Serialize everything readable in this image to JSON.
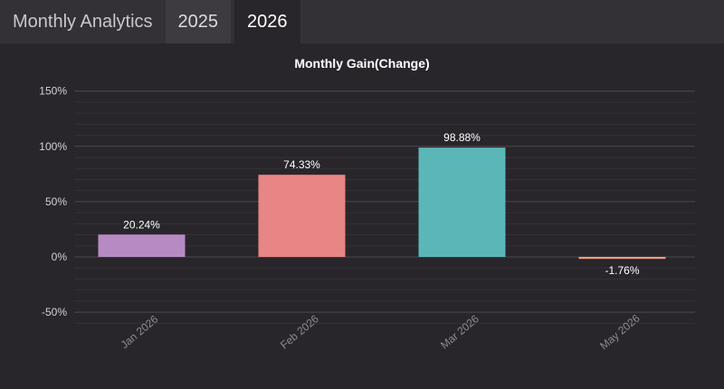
{
  "header": {
    "title": "Monthly Analytics",
    "tabs": [
      {
        "label": "2025",
        "active": false
      },
      {
        "label": "2026",
        "active": true
      }
    ]
  },
  "chart_data": {
    "type": "bar",
    "title": "Monthly Gain(Change)",
    "xlabel": "",
    "ylabel": "",
    "categories": [
      "Jan 2026",
      "Feb 2026",
      "Mar 2026",
      "May 2026"
    ],
    "values": [
      20.24,
      74.33,
      98.88,
      -1.76
    ],
    "value_labels": [
      "20.24%",
      "74.33%",
      "98.88%",
      "-1.76%"
    ],
    "colors": [
      "#b88ac4",
      "#e88585",
      "#5bb7b7",
      "#ee9d7c"
    ],
    "ylim": [
      -60,
      150
    ],
    "yticks": [
      -50,
      0,
      50,
      100,
      150
    ],
    "ytick_labels": [
      "-50%",
      "0%",
      "50%",
      "100%",
      "150%"
    ],
    "grid": true,
    "legend": "none"
  }
}
